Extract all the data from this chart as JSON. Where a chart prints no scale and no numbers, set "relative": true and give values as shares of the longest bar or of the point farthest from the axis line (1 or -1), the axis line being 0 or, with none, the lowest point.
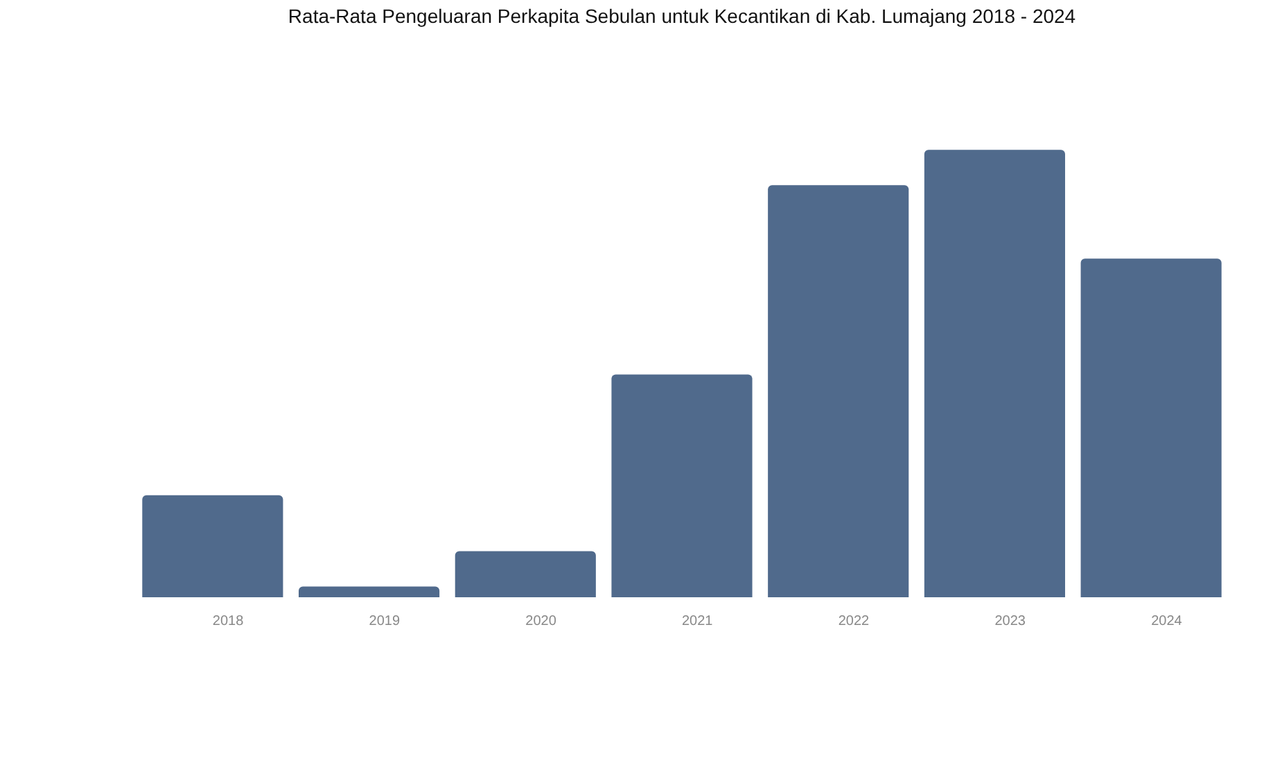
{
  "chart_data": {
    "type": "bar",
    "title": "Rata-Rata Pengeluaran Perkapita Sebulan untuk Kecantikan di Kab. Lumajang 2018 - 2024",
    "categories": [
      "2018",
      "2019",
      "2020",
      "2021",
      "2022",
      "2023",
      "2024"
    ],
    "values": [
      0.228,
      0.024,
      0.103,
      0.498,
      0.921,
      1,
      0.757
    ],
    "color": "#506a8c",
    "relative": true
  }
}
